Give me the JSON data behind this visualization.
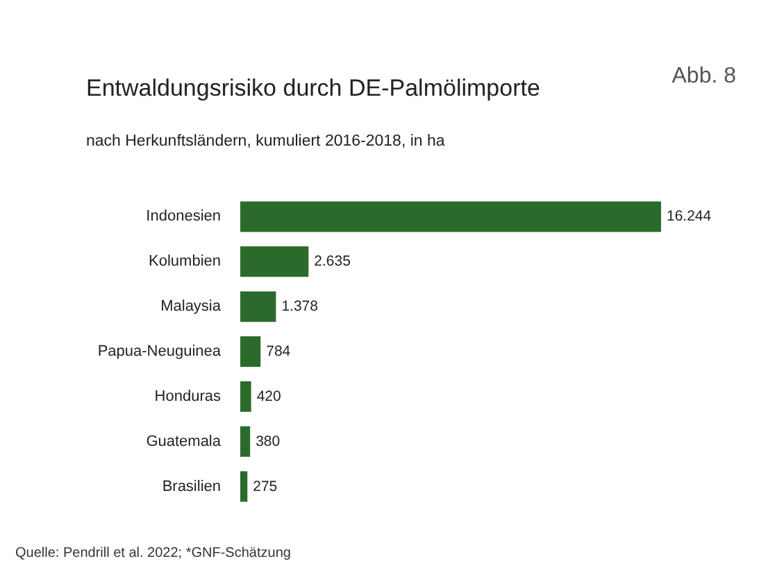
{
  "chart_data": {
    "type": "bar",
    "orientation": "horizontal",
    "title": "Entwaldungsrisiko durch DE-Palmölimporte",
    "subtitle": "nach Herkunftsländern, kumuliert 2016-2018, in ha",
    "categories": [
      "Indonesien",
      "Kolumbien",
      "Malaysia",
      "Papua-Neuguinea",
      "Honduras",
      "Guatemala",
      "Brasilien"
    ],
    "values": [
      16244,
      2635,
      1378,
      784,
      420,
      380,
      275
    ],
    "value_labels": [
      "16.244",
      "2.635",
      "1.378",
      "784",
      "420",
      "380",
      "275"
    ],
    "color": "#2b6a2b",
    "annotations": [
      "Abb. 8",
      "Quelle: Pendrill et al. 2022; *GNF-Schätzung"
    ]
  }
}
